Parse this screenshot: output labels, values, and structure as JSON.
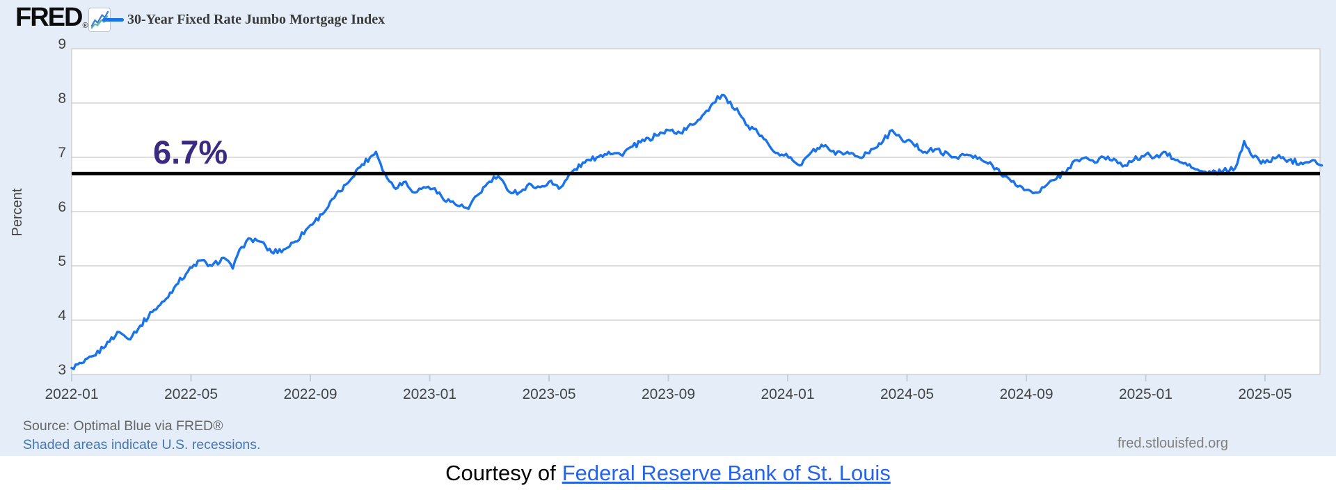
{
  "header": {
    "logo_text": "FRED",
    "logo_registered": "®",
    "legend_label": "30-Year Fixed Rate Jumbo Mortgage Index"
  },
  "annotation": {
    "label": "6.7%",
    "value": 6.7,
    "color": "#3b2a80"
  },
  "colors": {
    "series": "#1a73e8",
    "background": "#e5eef8",
    "plot_background": "#ffffff",
    "gridline": "#cbcbcb",
    "tick_mark": "#c2cfdd",
    "axis_text": "#444444",
    "annotation_line": "#000000",
    "link_blue": "#2563eb",
    "recession_note_blue": "#4477b4",
    "source_gray": "#666666",
    "url_gray": "#7f7f7f",
    "icon_line_blue": "#3c7fd0",
    "icon_line_teal": "#62b8a8"
  },
  "footer": {
    "source_line": "Source: Optimal Blue via FRED®",
    "recession_note": "Shaded areas indicate U.S. recessions.",
    "site": "fred.stlouisfed.org",
    "courtesy_prefix": "Courtesy of",
    "courtesy_link": "Federal Reserve Bank of St. Louis"
  },
  "chart_data": {
    "type": "line",
    "title": "30-Year Fixed Rate Jumbo Mortgage Index",
    "ylabel": "Percent",
    "ylim": [
      3,
      9
    ],
    "yticks": [
      3,
      4,
      5,
      6,
      7,
      8,
      9
    ],
    "xtick_labels": [
      "2022-01",
      "2022-05",
      "2022-09",
      "2023-01",
      "2023-05",
      "2023-09",
      "2024-01",
      "2024-05",
      "2024-09",
      "2025-01",
      "2025-05"
    ],
    "xtick_months": [
      0,
      4,
      8,
      12,
      16,
      20,
      24,
      28,
      32,
      36,
      40
    ],
    "x_unit": "months since 2022-01",
    "xlim": [
      0,
      41.9
    ],
    "grid": "horizontal",
    "legend_position": "top-left",
    "annotation_line_value": 6.7,
    "series": [
      {
        "name": "30-Year Fixed Rate Jumbo Mortgage Index",
        "points": [
          [
            0.0,
            3.12
          ],
          [
            0.4,
            3.22
          ],
          [
            0.8,
            3.35
          ],
          [
            1.2,
            3.6
          ],
          [
            1.6,
            3.78
          ],
          [
            1.9,
            3.65
          ],
          [
            2.3,
            3.9
          ],
          [
            2.7,
            4.15
          ],
          [
            3.1,
            4.35
          ],
          [
            3.5,
            4.65
          ],
          [
            3.9,
            4.9
          ],
          [
            4.3,
            5.1
          ],
          [
            4.7,
            5.0
          ],
          [
            5.1,
            5.15
          ],
          [
            5.4,
            4.95
          ],
          [
            5.7,
            5.35
          ],
          [
            6.0,
            5.5
          ],
          [
            6.3,
            5.45
          ],
          [
            6.7,
            5.25
          ],
          [
            7.1,
            5.3
          ],
          [
            7.5,
            5.45
          ],
          [
            8.0,
            5.75
          ],
          [
            8.4,
            5.95
          ],
          [
            8.8,
            6.25
          ],
          [
            9.2,
            6.5
          ],
          [
            9.6,
            6.8
          ],
          [
            10.0,
            7.0
          ],
          [
            10.2,
            7.1
          ],
          [
            10.5,
            6.7
          ],
          [
            10.8,
            6.45
          ],
          [
            11.2,
            6.55
          ],
          [
            11.5,
            6.35
          ],
          [
            11.8,
            6.45
          ],
          [
            12.1,
            6.42
          ],
          [
            12.4,
            6.28
          ],
          [
            12.7,
            6.18
          ],
          [
            13.0,
            6.1
          ],
          [
            13.3,
            6.05
          ],
          [
            13.6,
            6.3
          ],
          [
            14.0,
            6.55
          ],
          [
            14.3,
            6.65
          ],
          [
            14.6,
            6.4
          ],
          [
            15.0,
            6.35
          ],
          [
            15.4,
            6.5
          ],
          [
            15.7,
            6.45
          ],
          [
            16.0,
            6.55
          ],
          [
            16.4,
            6.45
          ],
          [
            16.8,
            6.75
          ],
          [
            17.2,
            6.9
          ],
          [
            17.6,
            7.0
          ],
          [
            18.0,
            7.1
          ],
          [
            18.4,
            7.05
          ],
          [
            18.8,
            7.2
          ],
          [
            19.2,
            7.3
          ],
          [
            19.6,
            7.4
          ],
          [
            20.0,
            7.5
          ],
          [
            20.4,
            7.45
          ],
          [
            20.8,
            7.6
          ],
          [
            21.2,
            7.8
          ],
          [
            21.5,
            8.0
          ],
          [
            21.8,
            8.15
          ],
          [
            22.0,
            8.0
          ],
          [
            22.3,
            7.9
          ],
          [
            22.6,
            7.6
          ],
          [
            23.0,
            7.45
          ],
          [
            23.4,
            7.2
          ],
          [
            23.8,
            7.05
          ],
          [
            24.1,
            7.0
          ],
          [
            24.4,
            6.85
          ],
          [
            24.8,
            7.1
          ],
          [
            25.2,
            7.2
          ],
          [
            25.6,
            7.05
          ],
          [
            26.0,
            7.1
          ],
          [
            26.4,
            7.0
          ],
          [
            26.8,
            7.15
          ],
          [
            27.2,
            7.3
          ],
          [
            27.5,
            7.5
          ],
          [
            27.8,
            7.35
          ],
          [
            28.2,
            7.25
          ],
          [
            28.6,
            7.1
          ],
          [
            29.0,
            7.15
          ],
          [
            29.5,
            7.0
          ],
          [
            30.0,
            7.05
          ],
          [
            30.5,
            6.95
          ],
          [
            31.0,
            6.8
          ],
          [
            31.5,
            6.55
          ],
          [
            32.0,
            6.4
          ],
          [
            32.3,
            6.35
          ],
          [
            32.6,
            6.45
          ],
          [
            33.0,
            6.6
          ],
          [
            33.4,
            6.8
          ],
          [
            33.7,
            6.95
          ],
          [
            34.0,
            7.0
          ],
          [
            34.3,
            6.9
          ],
          [
            34.6,
            7.0
          ],
          [
            35.0,
            6.95
          ],
          [
            35.3,
            6.85
          ],
          [
            35.6,
            6.95
          ],
          [
            36.0,
            7.05
          ],
          [
            36.3,
            7.0
          ],
          [
            36.6,
            7.1
          ],
          [
            37.0,
            6.95
          ],
          [
            37.4,
            6.85
          ],
          [
            37.8,
            6.75
          ],
          [
            38.2,
            6.7
          ],
          [
            38.6,
            6.75
          ],
          [
            39.0,
            6.8
          ],
          [
            39.3,
            7.3
          ],
          [
            39.6,
            7.0
          ],
          [
            40.0,
            6.9
          ],
          [
            40.4,
            7.0
          ],
          [
            40.8,
            6.95
          ],
          [
            41.2,
            6.9
          ],
          [
            41.6,
            6.95
          ],
          [
            41.9,
            6.85
          ]
        ]
      }
    ]
  }
}
